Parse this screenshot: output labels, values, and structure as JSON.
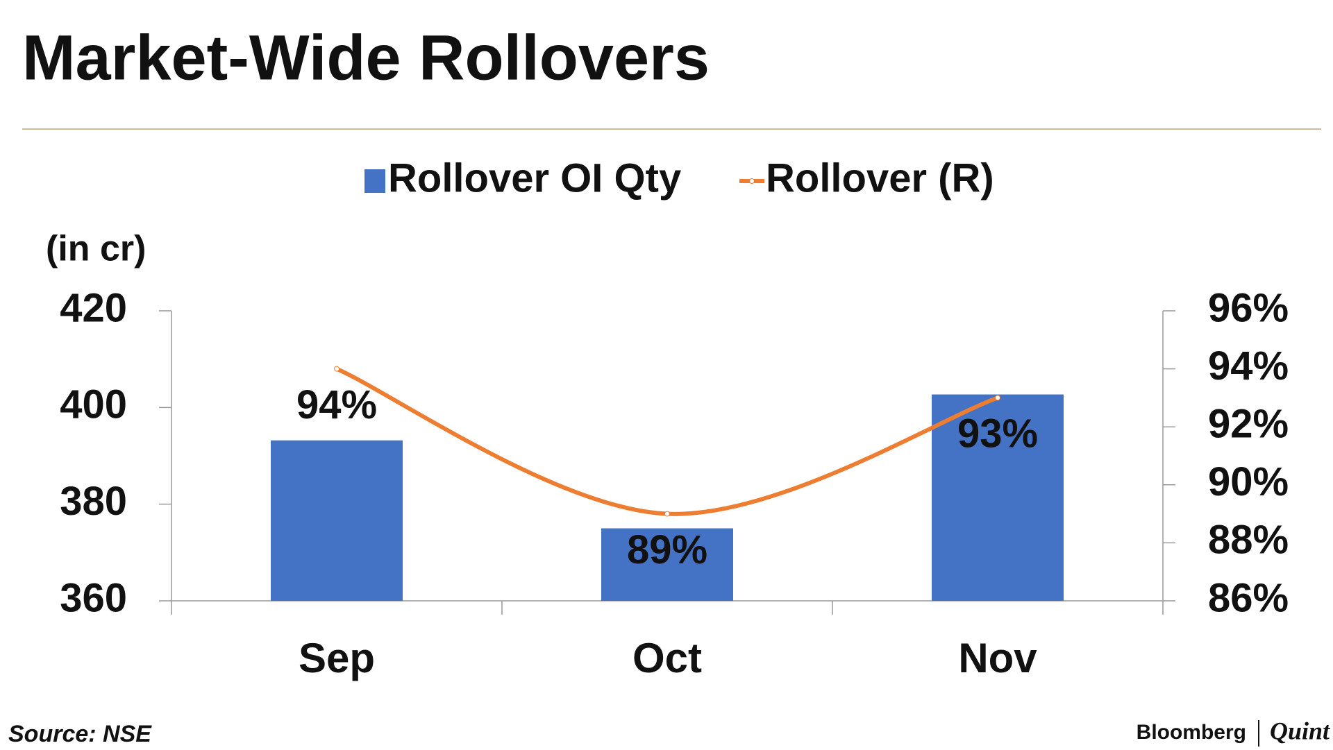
{
  "chart_data": {
    "type": "bar",
    "title": "Market-Wide Rollovers",
    "y_label": "(in cr)",
    "source": "Source: NSE",
    "brand": {
      "left": "Bloomberg",
      "right": "Quint"
    },
    "categories": [
      "Sep",
      "Oct",
      "Nov"
    ],
    "series": [
      {
        "name": "Rollover OI Qty",
        "type": "bar",
        "color": "#4472c4",
        "values": [
          393.2,
          375,
          402.7
        ]
      },
      {
        "name": "Rollover (R)",
        "type": "line",
        "axis": "y2",
        "color": "#ed7d31",
        "values": [
          94,
          89,
          93
        ],
        "value_labels": [
          "94%",
          "89%",
          "93%"
        ]
      }
    ],
    "ylim": [
      360,
      420
    ],
    "yticks": [
      360,
      380,
      400,
      420
    ],
    "y2lim": [
      86,
      96
    ],
    "y2ticks": [
      {
        "value": 86,
        "label": "86%"
      },
      {
        "value": 88,
        "label": "88%"
      },
      {
        "value": 90,
        "label": "90%"
      },
      {
        "value": 92,
        "label": "92%"
      },
      {
        "value": 94,
        "label": "94%"
      },
      {
        "value": 96,
        "label": "96%"
      }
    ],
    "grid": false
  }
}
